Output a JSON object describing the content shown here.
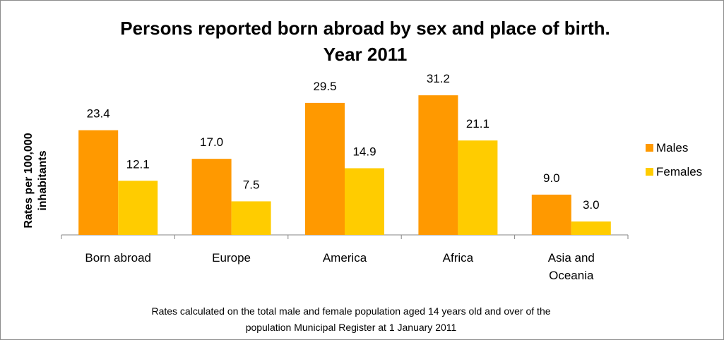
{
  "chart_data": {
    "type": "bar",
    "title": [
      "Persons reported born abroad by sex and place of birth.",
      "Year 2011"
    ],
    "ylabel": [
      "Rates per 100,000",
      "inhabitants"
    ],
    "xlabel": "",
    "categories": [
      [
        "Born abroad"
      ],
      [
        "Europe"
      ],
      [
        "America"
      ],
      [
        "Africa"
      ],
      [
        "Asia and",
        "Oceania"
      ]
    ],
    "series": [
      {
        "name": "Males",
        "values": [
          23.4,
          17.0,
          29.5,
          31.2,
          9.0
        ],
        "labels": [
          "23.4",
          "17.0",
          "29.5",
          "31.2",
          "9.0"
        ],
        "color": "#ff9900"
      },
      {
        "name": "Females",
        "values": [
          12.1,
          7.5,
          14.9,
          21.1,
          3.0
        ],
        "labels": [
          "12.1",
          "7.5",
          "14.9",
          "21.1",
          "3.0"
        ],
        "color": "#ffcc00"
      }
    ],
    "ylim": [
      0,
      35
    ],
    "grid": false,
    "legend_position": "right",
    "footnote": [
      "Rates calculated on the total male and female population aged 14 years old and over of the",
      "population Municipal Register at 1 January 2011"
    ]
  }
}
